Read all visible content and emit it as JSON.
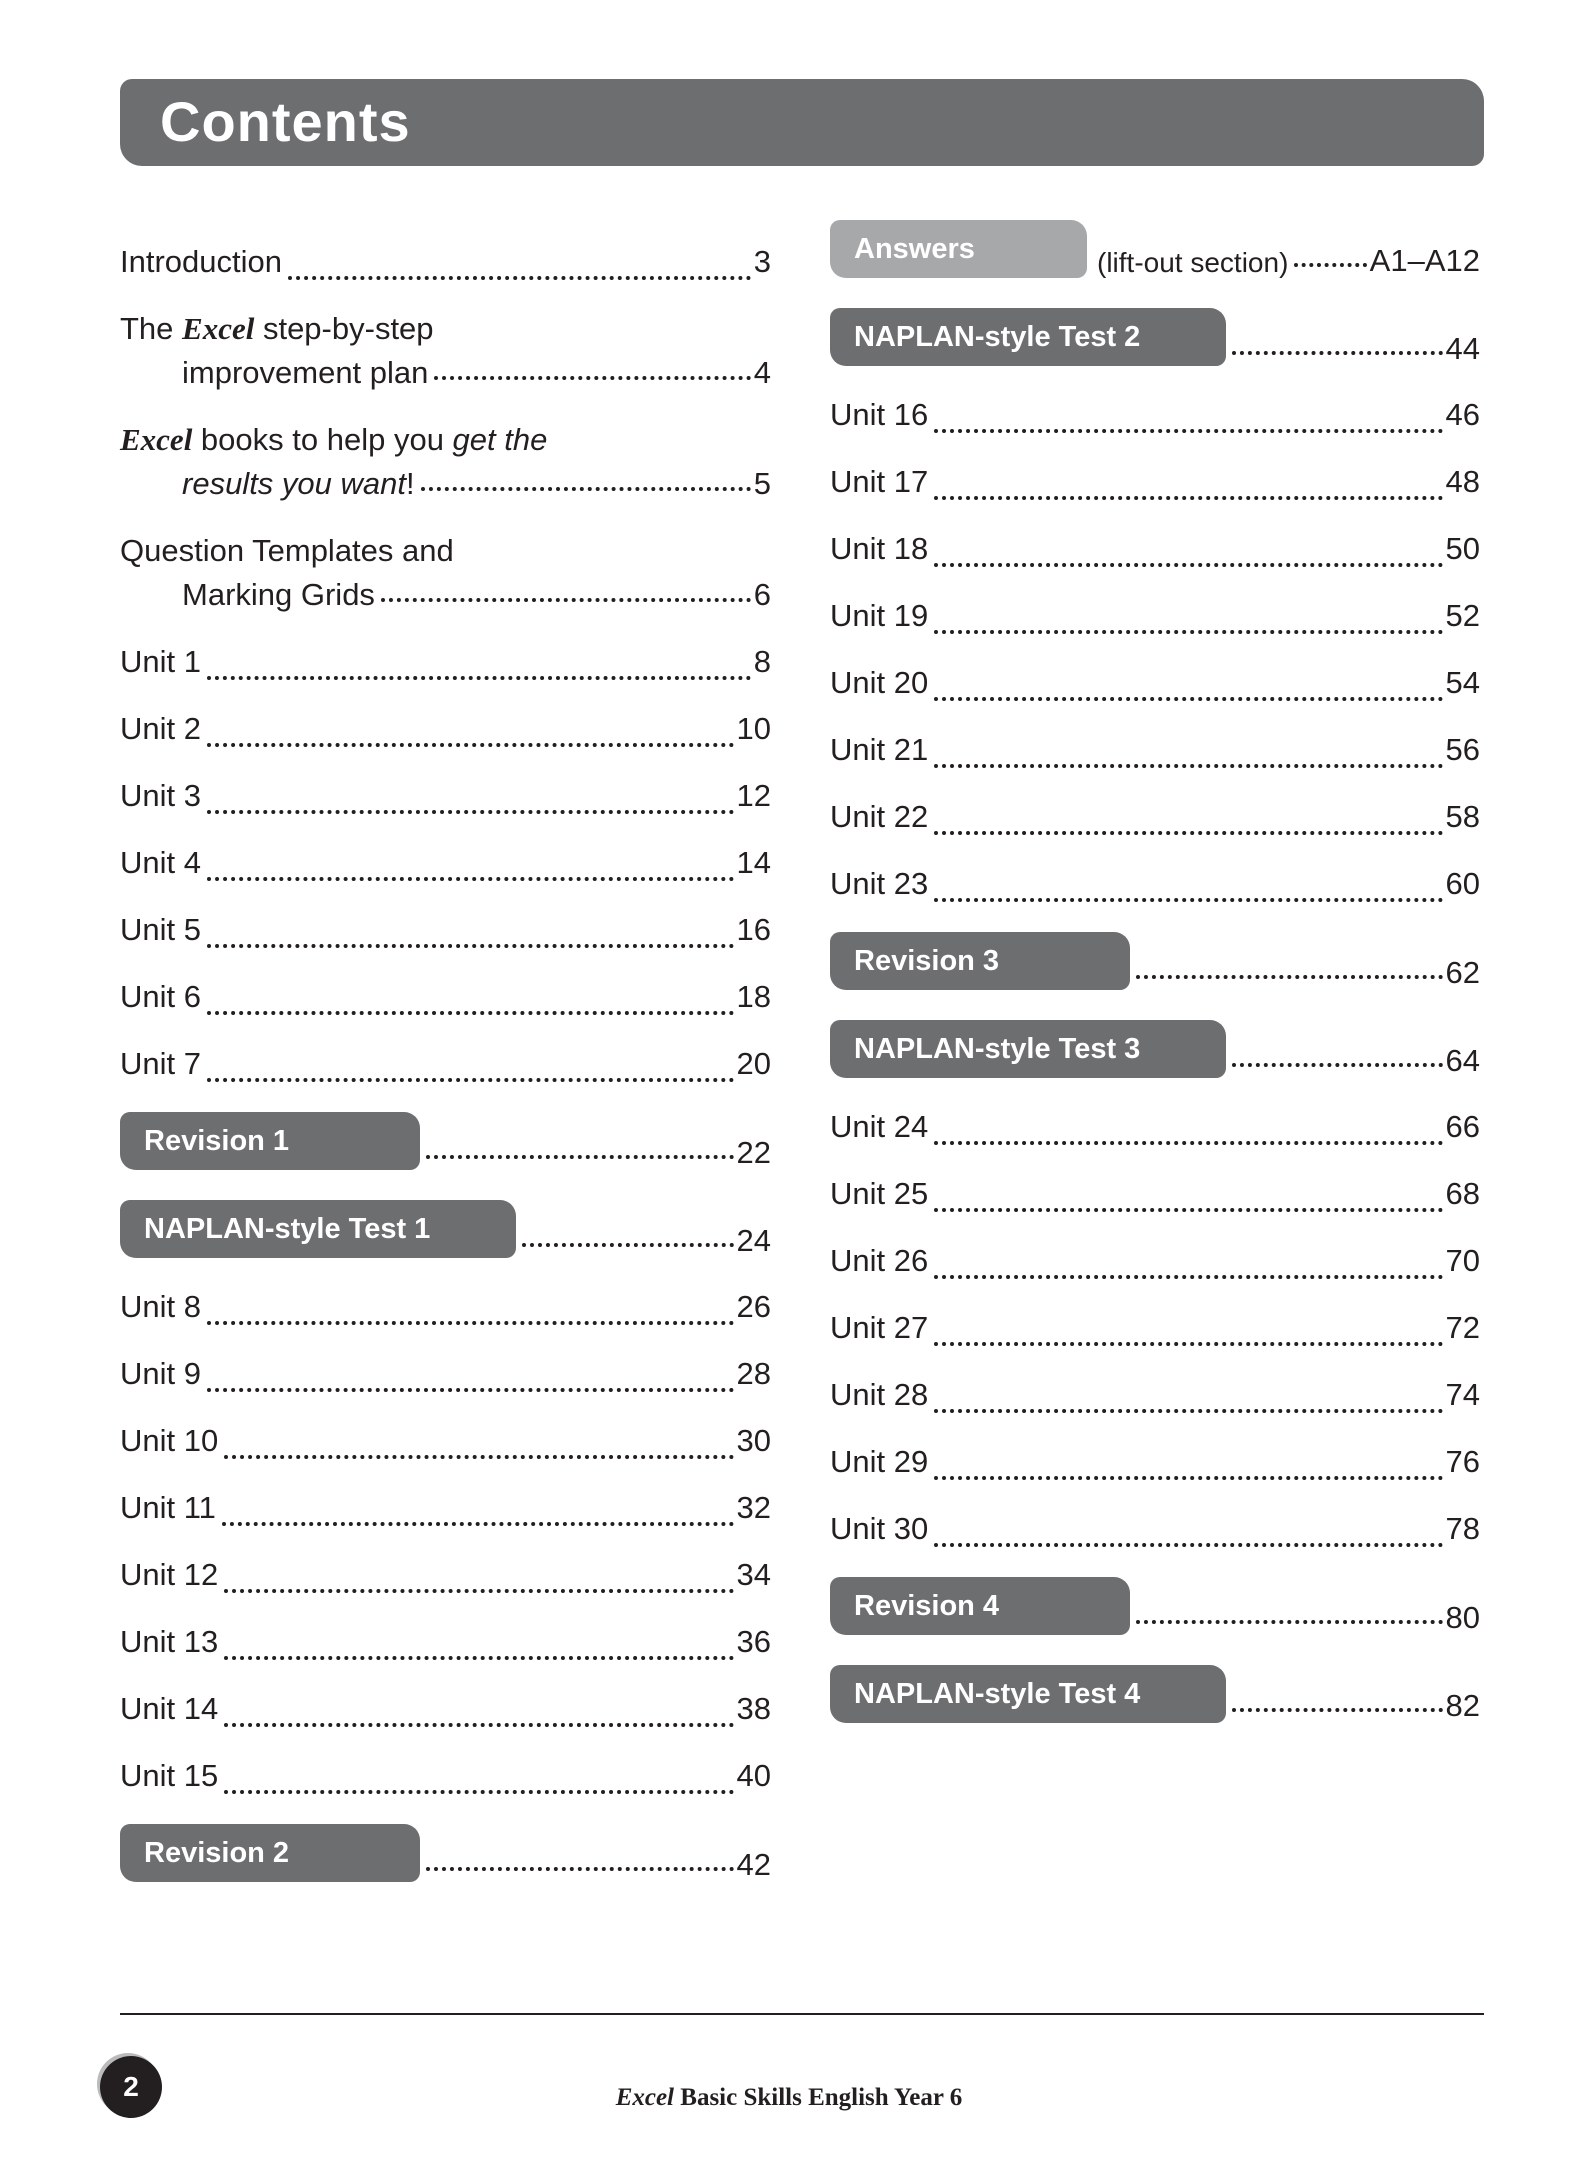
{
  "header": {
    "title": "Contents"
  },
  "left_column": [
    {
      "label": "Introduction",
      "page": "3"
    },
    {
      "lines": [
        [
          {
            "text": "The "
          },
          {
            "text": "Excel",
            "style": "brand"
          },
          {
            "text": " step-by-step"
          }
        ],
        [
          {
            "text": "improvement plan"
          }
        ]
      ],
      "page": "4"
    },
    {
      "lines": [
        [
          {
            "text": "Excel",
            "style": "brand"
          },
          {
            "text": " books to help you "
          },
          {
            "text": "get the",
            "style": "italic"
          }
        ],
        [
          {
            "text": "results you want",
            "style": "italic"
          },
          {
            "text": "!"
          }
        ]
      ],
      "page": "5"
    },
    {
      "lines": [
        [
          {
            "text": "Question Templates and"
          }
        ],
        [
          {
            "text": "Marking Grids"
          }
        ]
      ],
      "page": "6"
    },
    {
      "label": "Unit 1",
      "page": "8"
    },
    {
      "label": "Unit 2",
      "page": "10"
    },
    {
      "label": "Unit 3",
      "page": "12"
    },
    {
      "label": "Unit 4",
      "page": "14"
    },
    {
      "label": "Unit 5",
      "page": "16"
    },
    {
      "label": "Unit 6",
      "page": "18"
    },
    {
      "label": "Unit 7",
      "page": "20"
    },
    {
      "tab": "Revision 1",
      "page": "22"
    },
    {
      "tab": "NAPLAN-style Test 1",
      "page": "24"
    },
    {
      "label": "Unit 8",
      "page": "26"
    },
    {
      "label": "Unit 9",
      "page": "28"
    },
    {
      "label": "Unit 10",
      "page": "30"
    },
    {
      "label": "Unit 11",
      "page": "32"
    },
    {
      "label": "Unit 12",
      "page": "34"
    },
    {
      "label": "Unit 13",
      "page": "36"
    },
    {
      "label": "Unit 14",
      "page": "38"
    },
    {
      "label": "Unit 15",
      "page": "40"
    },
    {
      "tab": "Revision 2",
      "page": "42"
    }
  ],
  "right_column": [
    {
      "tab": "Answers",
      "shade": "light",
      "note": "(lift-out section)",
      "page": "A1–A12"
    },
    {
      "tab": "NAPLAN-style Test 2",
      "page": "44"
    },
    {
      "label": "Unit 16",
      "page": "46"
    },
    {
      "label": "Unit 17",
      "page": "48"
    },
    {
      "label": "Unit 18",
      "page": "50"
    },
    {
      "label": "Unit 19",
      "page": "52"
    },
    {
      "label": "Unit 20",
      "page": "54"
    },
    {
      "label": "Unit 21",
      "page": "56"
    },
    {
      "label": "Unit 22",
      "page": "58"
    },
    {
      "label": "Unit 23",
      "page": "60"
    },
    {
      "tab": "Revision 3",
      "page": "62"
    },
    {
      "tab": "NAPLAN-style Test 3",
      "page": "64"
    },
    {
      "label": "Unit 24",
      "page": "66"
    },
    {
      "label": "Unit 25",
      "page": "68"
    },
    {
      "label": "Unit 26",
      "page": "70"
    },
    {
      "label": "Unit 27",
      "page": "72"
    },
    {
      "label": "Unit 28",
      "page": "74"
    },
    {
      "label": "Unit 29",
      "page": "76"
    },
    {
      "label": "Unit 30",
      "page": "78"
    },
    {
      "tab": "Revision 4",
      "page": "80"
    },
    {
      "tab": "NAPLAN-style Test 4",
      "page": "82"
    }
  ],
  "footer": {
    "page": "2",
    "brand": "Excel",
    "text": "Basic Skills English Year 6"
  }
}
